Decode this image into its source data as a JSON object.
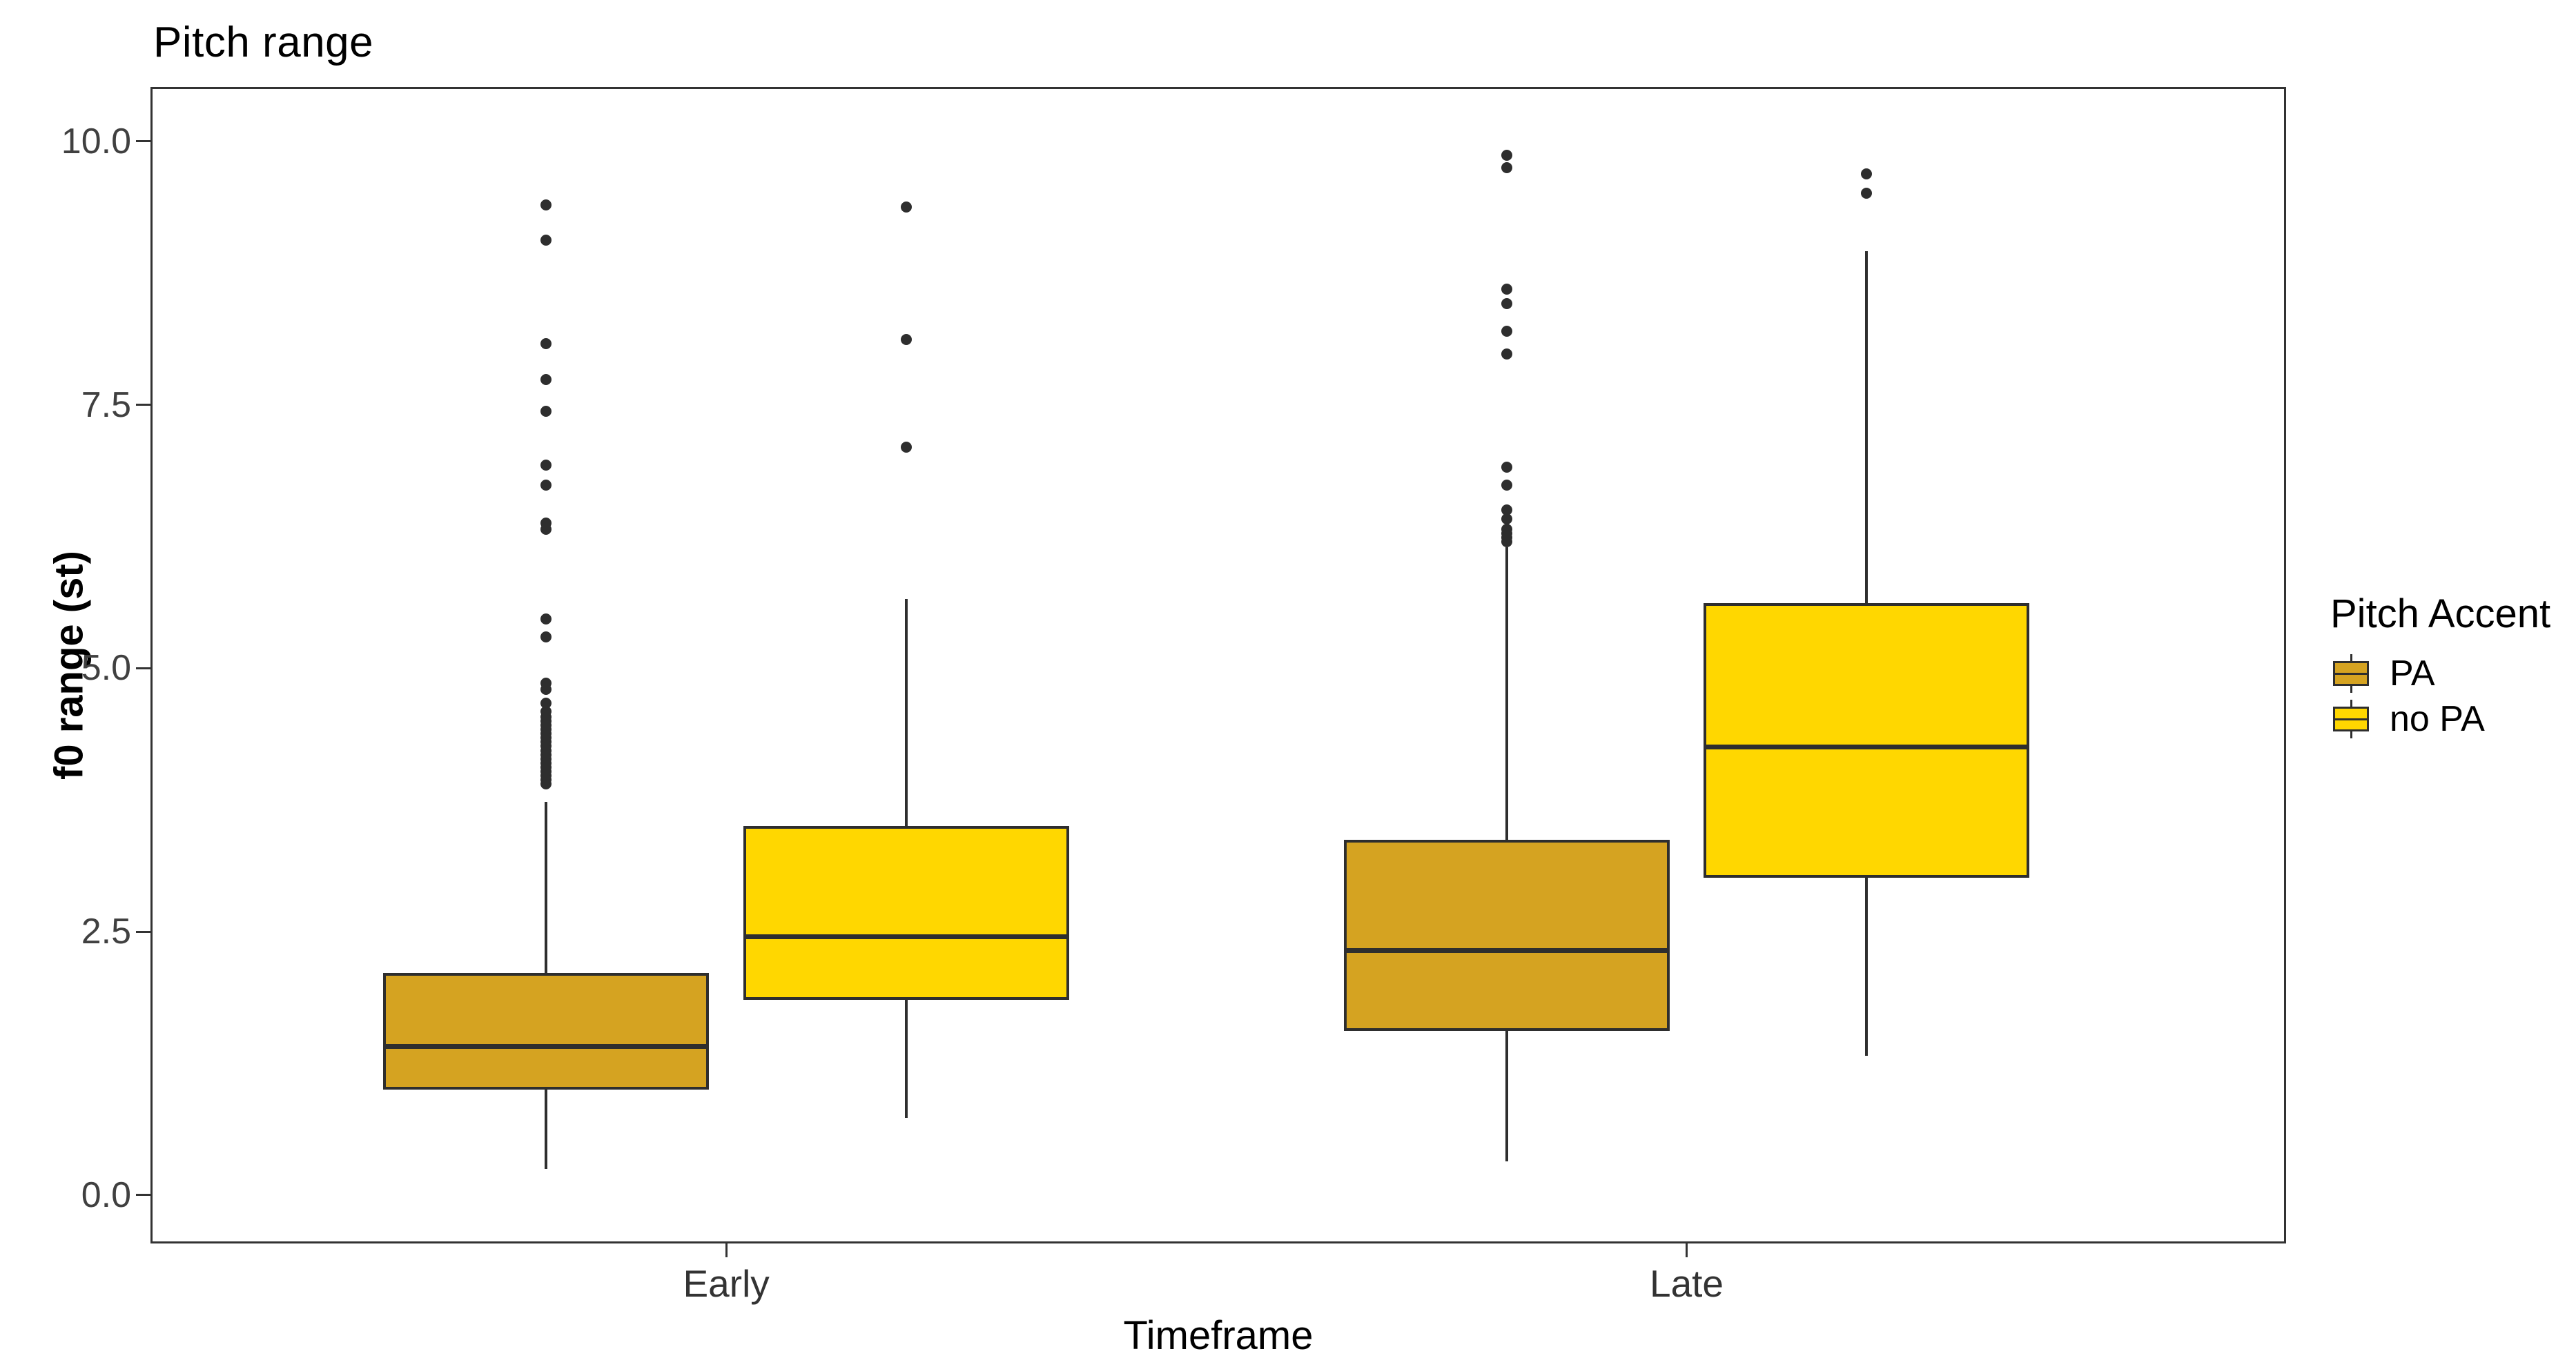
{
  "title": "Pitch range",
  "axes": {
    "y": {
      "label": "f0 range (st)",
      "tick_labels": [
        "0.0",
        "2.5",
        "5.0",
        "7.5",
        "10.0"
      ],
      "tick_values": [
        0.0,
        2.5,
        5.0,
        7.5,
        10.0
      ],
      "range_shown": [
        -0.46,
        10.52
      ]
    },
    "x": {
      "label": "Timeframe",
      "categories": [
        "Early",
        "Late"
      ]
    }
  },
  "legend": {
    "title": "Pitch Accent",
    "entries": [
      {
        "label": "PA",
        "color": "#D5A321"
      },
      {
        "label": "no PA",
        "color": "#FFD700"
      }
    ]
  },
  "colors": {
    "stroke": "#2e2e2e",
    "panel_border": "#333333",
    "background": "#ffffff",
    "pa_fill": "#D5A321",
    "no_pa_fill": "#FFD700"
  },
  "chart_data": {
    "type": "boxplot",
    "title": "Pitch range",
    "xlabel": "Timeframe",
    "ylabel": "f0 range (st)",
    "categories": [
      "Early",
      "Late"
    ],
    "ylim": [
      -0.46,
      10.52
    ],
    "yticks": [
      0.0,
      2.5,
      5.0,
      7.5,
      10.0
    ],
    "grid": false,
    "legend_position": "right",
    "series": [
      {
        "name": "PA",
        "color": "#D5A321",
        "boxes": [
          {
            "category": "Early",
            "whisker_low": 0.25,
            "q1": 1.0,
            "median": 1.41,
            "q3": 2.11,
            "whisker_high": 3.73,
            "outliers": [
              3.9,
              3.94,
              3.98,
              4.02,
              4.06,
              4.1,
              4.14,
              4.18,
              4.22,
              4.26,
              4.3,
              4.34,
              4.38,
              4.42,
              4.46,
              4.5,
              4.54,
              4.59,
              4.67,
              4.8,
              4.86,
              5.3,
              5.47,
              6.32,
              6.38,
              6.74,
              6.93,
              7.44,
              7.74,
              8.08,
              9.06,
              9.4
            ]
          },
          {
            "category": "Late",
            "whisker_low": 0.32,
            "q1": 1.56,
            "median": 2.32,
            "q3": 3.37,
            "whisker_high": 6.15,
            "outliers": [
              6.2,
              6.24,
              6.28,
              6.32,
              6.42,
              6.5,
              6.74,
              6.91,
              7.98,
              8.2,
              8.46,
              8.6,
              9.75,
              9.87
            ]
          }
        ]
      },
      {
        "name": "no PA",
        "color": "#FFD700",
        "boxes": [
          {
            "category": "Early",
            "whisker_low": 0.73,
            "q1": 1.85,
            "median": 2.45,
            "q3": 3.5,
            "whisker_high": 5.66,
            "outliers": [
              7.1,
              8.12,
              9.38
            ]
          },
          {
            "category": "Late",
            "whisker_low": 1.32,
            "q1": 3.01,
            "median": 4.25,
            "q3": 5.62,
            "whisker_high": 8.96,
            "outliers": [
              9.51,
              9.69
            ]
          }
        ]
      }
    ]
  }
}
